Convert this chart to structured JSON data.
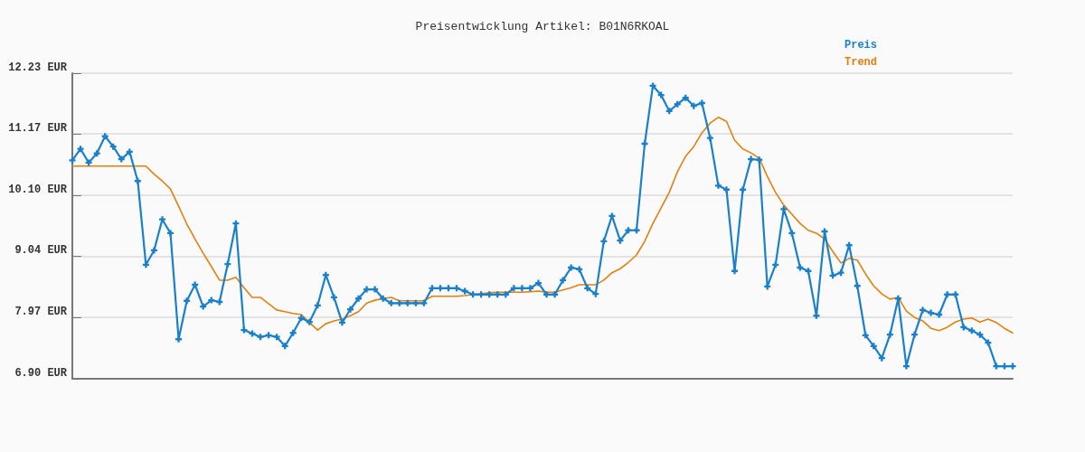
{
  "chart_data": {
    "type": "line",
    "title": "Preisentwicklung Artikel: B01N6RKOAL",
    "categories": [
      null,
      null,
      null,
      null,
      null,
      null,
      null,
      null,
      null,
      null,
      null,
      null,
      null,
      null,
      null,
      null,
      null,
      null,
      null,
      null,
      null,
      null,
      null,
      null,
      null,
      null,
      null,
      null,
      null,
      null,
      null,
      null,
      null,
      null,
      null,
      null,
      null,
      null,
      null,
      null,
      null,
      null,
      null,
      null,
      null,
      null,
      null,
      null,
      null,
      null,
      null,
      null,
      null,
      null,
      null,
      null,
      null,
      null,
      null,
      null,
      null,
      null,
      null,
      null,
      null,
      null,
      null,
      null,
      null,
      null,
      null,
      null,
      null,
      null,
      null,
      null,
      null,
      null,
      null,
      null,
      null,
      null,
      null,
      null,
      null,
      null,
      null,
      null,
      null,
      null,
      null,
      null,
      null,
      null,
      null,
      null,
      null,
      null,
      null,
      null,
      null,
      null,
      null,
      null,
      null,
      null,
      null,
      null,
      null,
      null,
      null,
      null,
      null,
      null,
      null,
      null
    ],
    "series": [
      {
        "name": "Preis",
        "color": "#1a80cc",
        "marker": "cross",
        "values": [
          10.71,
          10.91,
          10.67,
          10.83,
          11.13,
          10.95,
          10.73,
          10.86,
          10.35,
          8.89,
          9.14,
          9.68,
          9.44,
          7.59,
          8.26,
          8.54,
          8.16,
          8.27,
          8.24,
          8.9,
          9.61,
          7.75,
          7.69,
          7.63,
          7.66,
          7.63,
          7.47,
          7.7,
          7.96,
          7.89,
          8.18,
          8.71,
          8.32,
          7.88,
          8.11,
          8.3,
          8.46,
          8.46,
          8.3,
          8.22,
          8.22,
          8.22,
          8.22,
          8.22,
          8.48,
          8.48,
          8.48,
          8.48,
          8.43,
          8.37,
          8.37,
          8.37,
          8.37,
          8.37,
          8.48,
          8.48,
          8.48,
          8.57,
          8.37,
          8.37,
          8.62,
          8.84,
          8.81,
          8.48,
          8.38,
          9.3,
          9.74,
          9.31,
          9.49,
          9.49,
          11.0,
          12.01,
          11.85,
          11.57,
          11.69,
          11.8,
          11.66,
          11.71,
          11.1,
          10.27,
          10.2,
          8.78,
          10.2,
          10.73,
          10.72,
          8.51,
          8.89,
          9.86,
          9.44,
          8.84,
          8.78,
          8.0,
          9.47,
          8.7,
          8.75,
          9.23,
          8.52,
          7.66,
          7.47,
          7.26,
          7.67,
          8.3,
          7.12,
          7.67,
          8.1,
          8.05,
          8.02,
          8.37,
          8.37,
          7.8,
          7.74,
          7.67,
          7.53,
          7.12,
          7.12,
          7.12
        ]
      },
      {
        "name": "Trend",
        "color": "#e3800e",
        "marker": "none",
        "values": [
          10.61,
          10.61,
          10.61,
          10.61,
          10.61,
          10.61,
          10.61,
          10.61,
          10.61,
          10.61,
          10.47,
          10.35,
          10.21,
          9.91,
          9.6,
          9.34,
          9.09,
          8.86,
          8.62,
          8.62,
          8.67,
          8.49,
          8.32,
          8.32,
          8.21,
          8.1,
          8.07,
          8.04,
          8.02,
          7.88,
          7.75,
          7.86,
          7.91,
          7.94,
          8.0,
          8.07,
          8.22,
          8.27,
          8.3,
          8.32,
          8.26,
          8.26,
          8.26,
          8.26,
          8.34,
          8.34,
          8.34,
          8.34,
          8.35,
          8.37,
          8.38,
          8.4,
          8.41,
          8.41,
          8.41,
          8.41,
          8.42,
          8.43,
          8.41,
          8.41,
          8.45,
          8.49,
          8.54,
          8.54,
          8.54,
          8.62,
          8.75,
          8.82,
          8.93,
          9.06,
          9.3,
          9.61,
          9.88,
          10.15,
          10.51,
          10.78,
          10.95,
          11.19,
          11.36,
          11.46,
          11.39,
          11.06,
          10.91,
          10.84,
          10.75,
          10.43,
          10.15,
          9.93,
          9.77,
          9.61,
          9.49,
          9.44,
          9.34,
          9.12,
          8.92,
          9.0,
          8.97,
          8.73,
          8.52,
          8.38,
          8.29,
          8.32,
          8.08,
          7.97,
          7.91,
          7.78,
          7.74,
          7.8,
          7.89,
          7.94,
          7.96,
          7.89,
          7.94,
          7.88,
          7.78,
          7.7
        ]
      }
    ],
    "ylim": [
      6.9,
      12.23
    ],
    "yticks": [
      {
        "value": 6.9,
        "label": "6.90 EUR"
      },
      {
        "value": 7.97,
        "label": "7.97 EUR"
      },
      {
        "value": 9.04,
        "label": "9.04 EUR"
      },
      {
        "value": 10.1,
        "label": "10.10 EUR"
      },
      {
        "value": 11.17,
        "label": "11.17 EUR"
      },
      {
        "value": 12.23,
        "label": "12.23 EUR"
      }
    ],
    "grid": "y",
    "legend": "top right",
    "tick_labels": "y",
    "line_style": "solid"
  }
}
